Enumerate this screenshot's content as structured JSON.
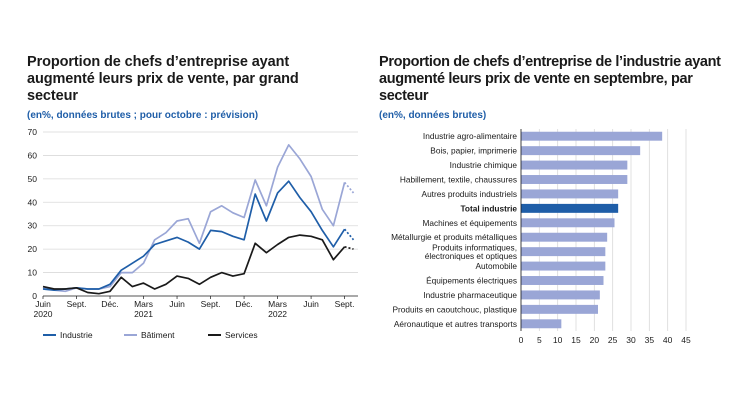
{
  "colors": {
    "industrie": "#1f5ea8",
    "batiment": "#9aa6d6",
    "services": "#1a1a1a",
    "bar": "#9aa6d6",
    "bar_highlight": "#1f5ea8",
    "grid": "#d9d9d9"
  },
  "chart_data": [
    {
      "type": "line",
      "title": "Proportion de chefs d’entreprise ayant augmenté leurs prix de vente, par grand secteur",
      "subtitle": "(en%, données brutes ; pour octobre : prévision)",
      "ylim": [
        0,
        70
      ],
      "yticks": [
        0,
        10,
        20,
        30,
        40,
        50,
        60,
        70
      ],
      "grid": "horizontal",
      "x_labels": [
        {
          "index": 0,
          "lines": [
            "Juin",
            "2020"
          ]
        },
        {
          "index": 3,
          "lines": [
            "Sept."
          ]
        },
        {
          "index": 6,
          "lines": [
            "Déc."
          ]
        },
        {
          "index": 9,
          "lines": [
            "Mars",
            "2021"
          ]
        },
        {
          "index": 12,
          "lines": [
            "Juin"
          ]
        },
        {
          "index": 15,
          "lines": [
            "Sept."
          ]
        },
        {
          "index": 18,
          "lines": [
            "Déc."
          ]
        },
        {
          "index": 21,
          "lines": [
            "Mars",
            "2022"
          ]
        },
        {
          "index": 24,
          "lines": [
            "Juin"
          ]
        },
        {
          "index": 27,
          "lines": [
            "Sept."
          ]
        }
      ],
      "series": [
        {
          "name": "Industrie",
          "color_key": "industrie",
          "values": [
            3,
            2.5,
            3,
            3.5,
            3,
            3,
            5,
            11,
            14,
            17,
            22,
            23.5,
            25,
            23,
            20,
            28,
            27.5,
            25.5,
            24,
            43.5,
            32,
            44,
            49,
            42,
            36,
            28,
            21,
            28.5
          ],
          "forecast": [
            28.5,
            24
          ]
        },
        {
          "name": "Bâtiment",
          "color_key": "batiment",
          "values": [
            3.5,
            2.5,
            2,
            3.5,
            3,
            3,
            4,
            10,
            10,
            14,
            24,
            27,
            32,
            33,
            22.5,
            36,
            38.5,
            35.5,
            33.5,
            49.5,
            38.5,
            55,
            64.5,
            58.5,
            51,
            37,
            30,
            48.5
          ],
          "forecast": [
            48.5,
            44
          ]
        },
        {
          "name": "Services",
          "color_key": "services",
          "values": [
            4,
            3,
            3,
            3.5,
            1.5,
            1,
            2,
            8,
            4,
            5.5,
            3,
            5,
            8.5,
            7.5,
            5,
            8,
            10,
            8.5,
            9.5,
            22.5,
            18.5,
            22,
            25,
            26,
            25.5,
            24,
            15.5,
            21
          ],
          "forecast": [
            21,
            20
          ]
        }
      ]
    },
    {
      "type": "bar",
      "orientation": "horizontal",
      "title": "Proportion de chefs d’entreprise de l’industrie ayant augmenté leurs prix de vente en septembre, par secteur",
      "subtitle": "(en%, données brutes)",
      "xlim": [
        0,
        45
      ],
      "xticks": [
        0,
        5,
        10,
        15,
        20,
        25,
        30,
        35,
        40,
        45
      ],
      "grid": "vertical",
      "bars": [
        {
          "label": [
            "Industrie agro-alimentaire"
          ],
          "value": 38.5
        },
        {
          "label": [
            "Bois, papier, imprimerie"
          ],
          "value": 32.5
        },
        {
          "label": [
            "Industrie chimique"
          ],
          "value": 29
        },
        {
          "label": [
            "Habillement, textile, chaussures"
          ],
          "value": 29
        },
        {
          "label": [
            "Autres produits industriels"
          ],
          "value": 26.5
        },
        {
          "label": [
            "Total industrie"
          ],
          "value": 26.5,
          "highlight": true
        },
        {
          "label": [
            "Machines et équipements"
          ],
          "value": 25.5
        },
        {
          "label": [
            "Métallurgie et produits métalliques"
          ],
          "value": 23.5
        },
        {
          "label": [
            "Produits informatiques,",
            "électroniques et optiques"
          ],
          "value": 23
        },
        {
          "label": [
            "Automobile"
          ],
          "value": 23
        },
        {
          "label": [
            "Équipements électriques"
          ],
          "value": 22.5
        },
        {
          "label": [
            "Industrie pharmaceutique"
          ],
          "value": 21.5
        },
        {
          "label": [
            "Produits en caoutchouc, plastique"
          ],
          "value": 21
        },
        {
          "label": [
            "Aéronautique et autres transports"
          ],
          "value": 11
        }
      ]
    }
  ]
}
